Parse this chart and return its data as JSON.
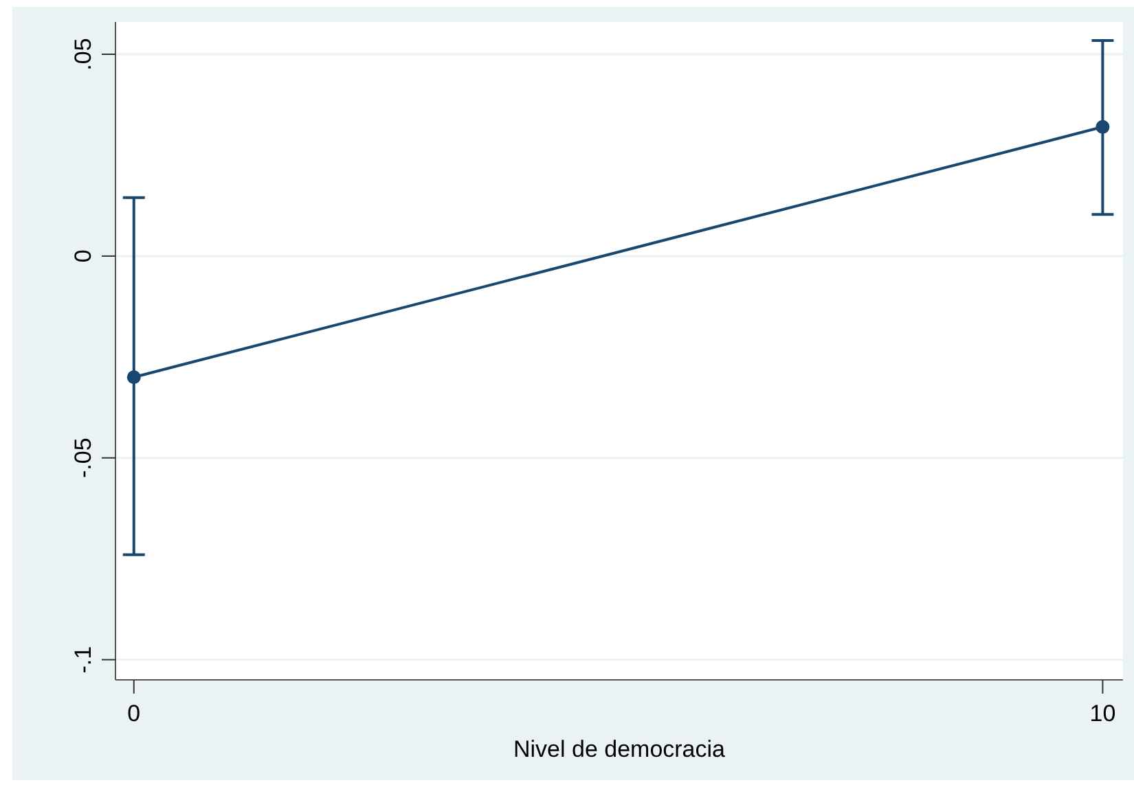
{
  "chart_data": {
    "type": "line",
    "xlabel": "Nivel de democracia",
    "x": [
      0,
      10
    ],
    "series": [
      {
        "color": "#1a476f",
        "values": [
          -0.03,
          0.032
        ],
        "errors": [
          [
            -0.074,
            0.0145
          ],
          [
            0.0103,
            0.0534
          ]
        ]
      }
    ],
    "xlim": [
      -0.19,
      10.21
    ],
    "xticks": [
      0,
      10
    ],
    "ylim": [
      -0.105,
      0.058
    ],
    "yticks": [
      {
        "value": -0.1,
        "label": "-.1"
      },
      {
        "value": -0.05,
        "label": "-.05"
      },
      {
        "value": 0,
        "label": "0"
      },
      {
        "value": 0.05,
        "label": ".05"
      }
    ],
    "grid": "y",
    "marker": "circle",
    "line_style": "solid"
  }
}
